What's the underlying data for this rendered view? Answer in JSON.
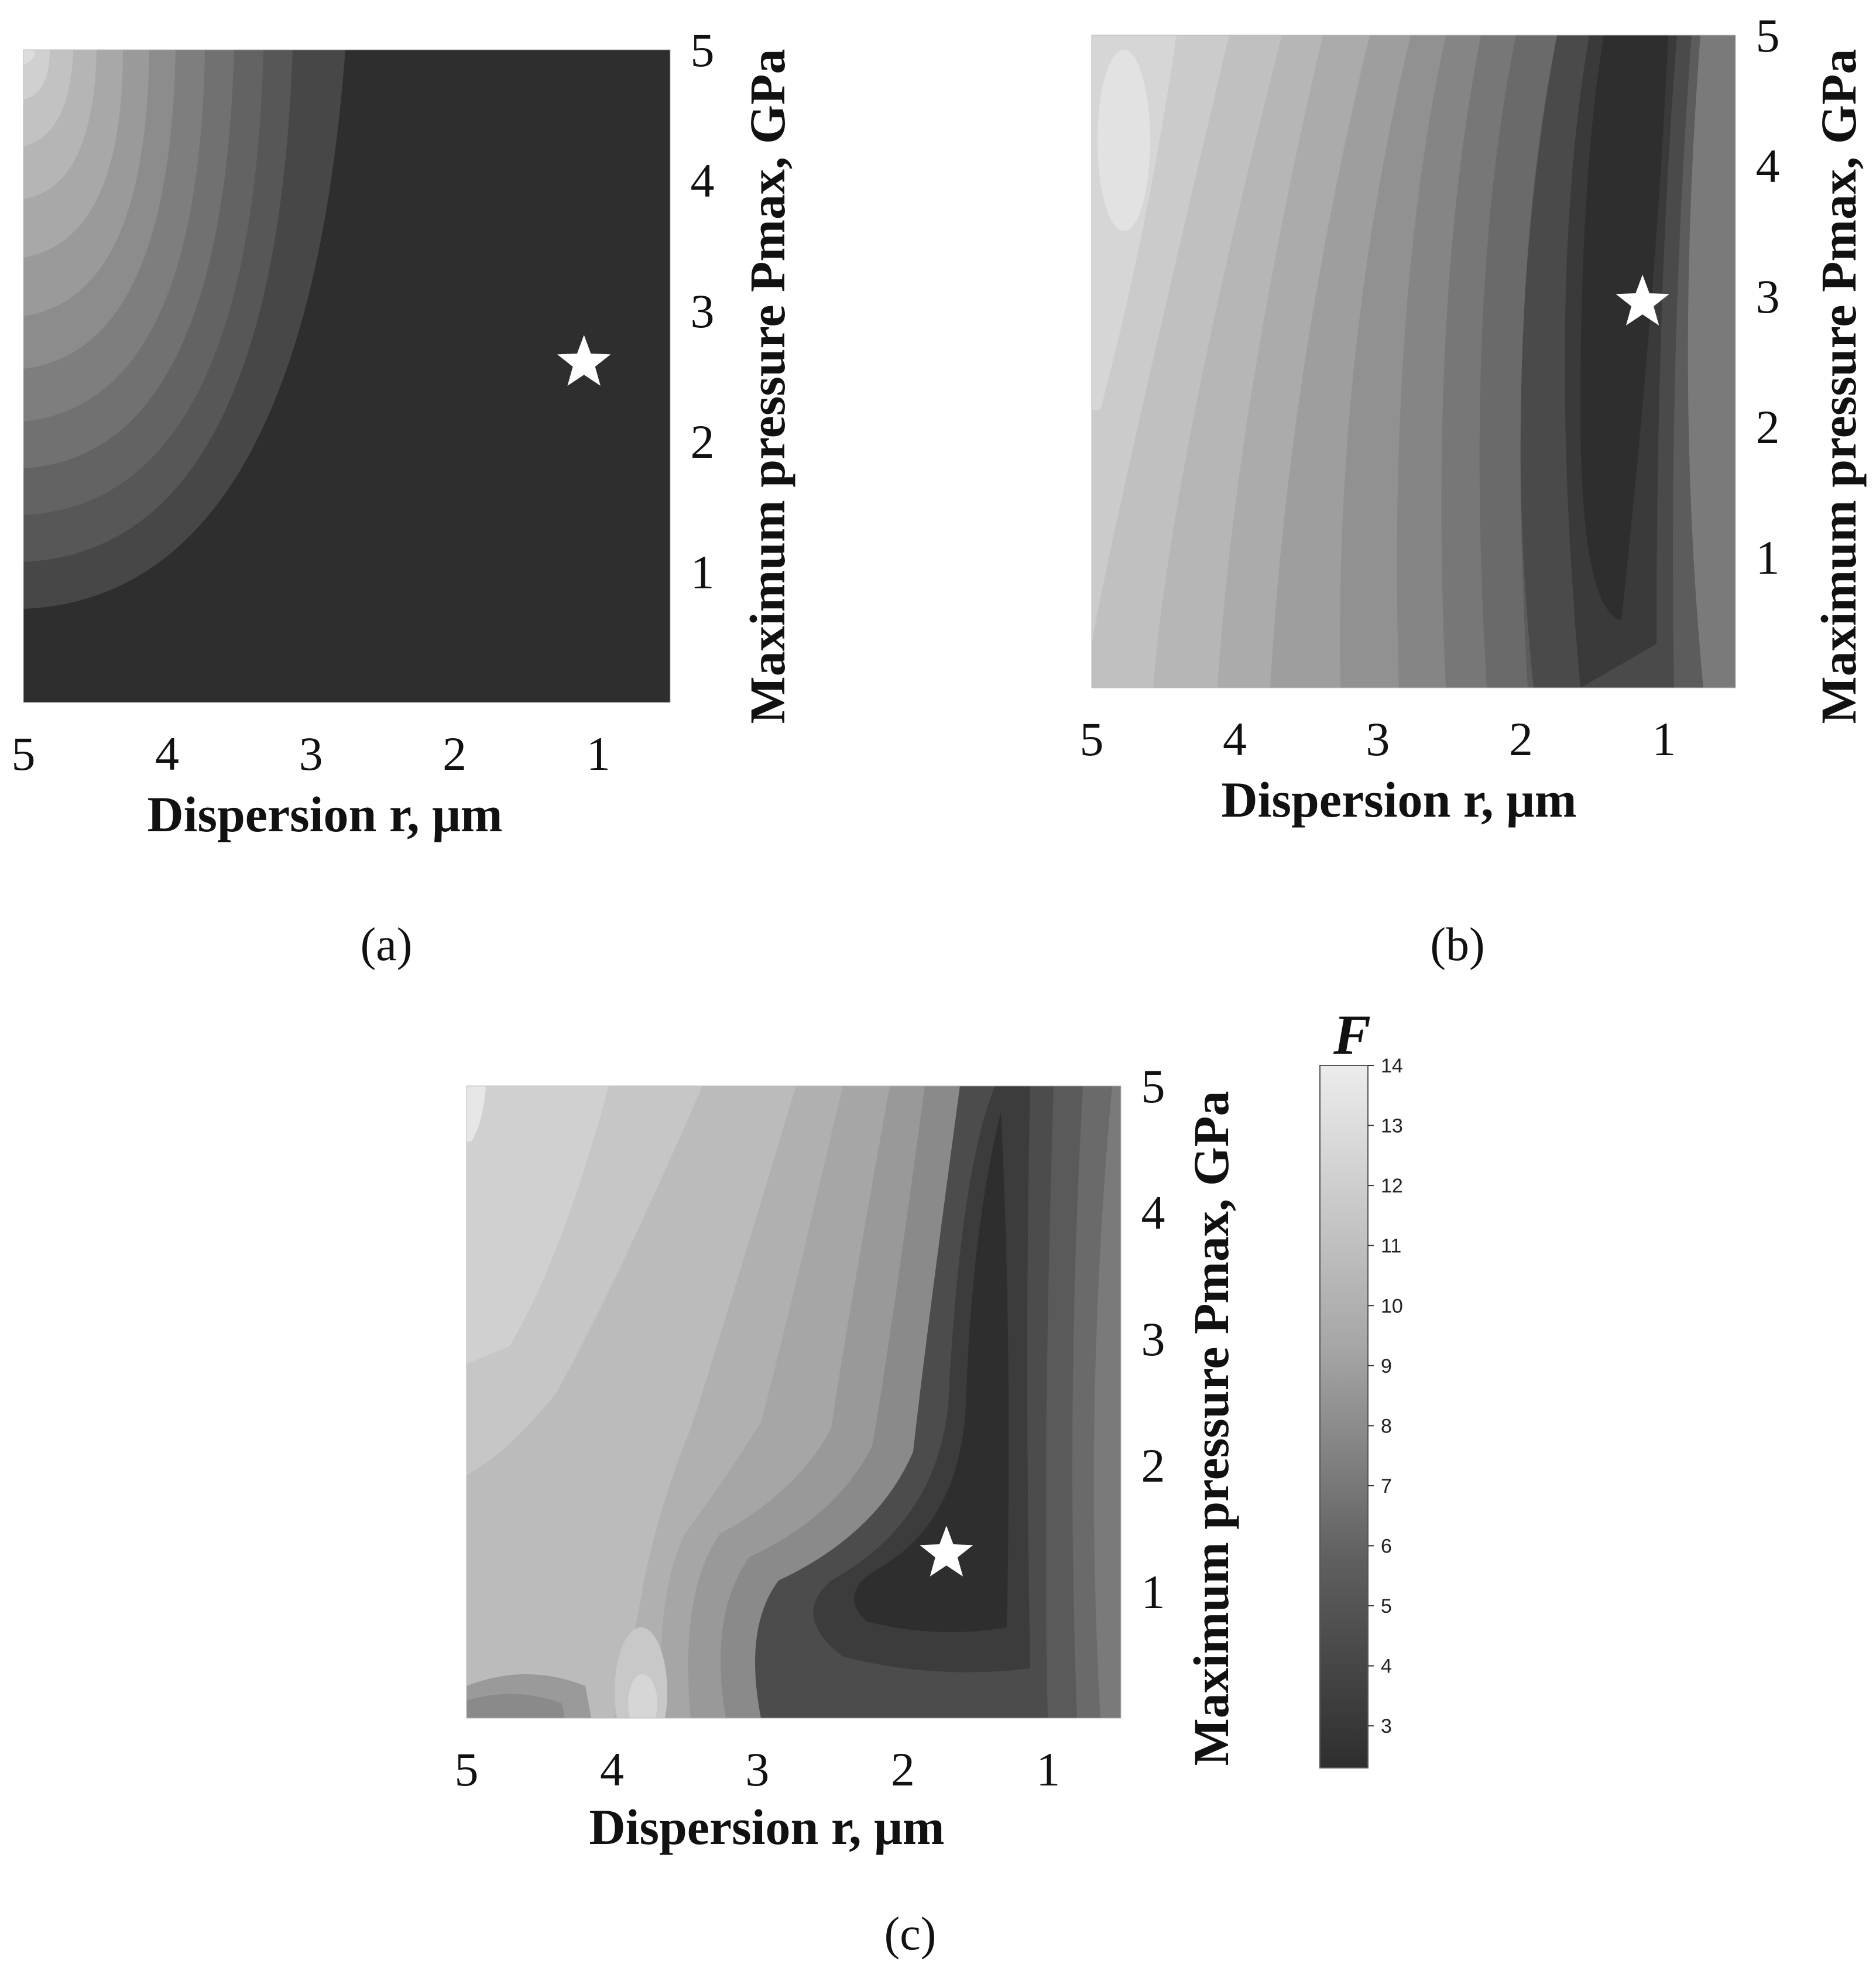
{
  "figure": {
    "captions": [
      "(a)",
      "(b)",
      "(c)"
    ]
  },
  "chart_data": [
    {
      "type": "heatmap",
      "panel": "(a)",
      "xlabel": "Dispersion r, μm",
      "ylabel": "Maximum pressure Pmax, GPa",
      "xticks": [
        5,
        4,
        3,
        2,
        1
      ],
      "yticks": [
        1,
        2,
        3,
        4,
        5
      ],
      "xlim": [
        5,
        0.5
      ],
      "ylim": [
        0,
        5
      ],
      "x_direction": "decreasing",
      "yaxis_side": "right",
      "colorscale": "grayscale",
      "optimum_marker": {
        "symbol": "star",
        "x": 1.1,
        "y": 2.6
      },
      "description_values": {
        "min_region": "r < 2.6 μm (F ≈ 2.5)",
        "max_region": "r = 5 μm, Pmax = 5 GPa (F ≈ 13.5)"
      }
    },
    {
      "type": "heatmap",
      "panel": "(b)",
      "xlabel": "Dispersion r, μm",
      "ylabel": "Maximum pressure Pmax, GPa",
      "xticks": [
        5,
        4,
        3,
        2,
        1
      ],
      "yticks": [
        1,
        2,
        3,
        4,
        5
      ],
      "xlim": [
        5,
        0.5
      ],
      "ylim": [
        0,
        5
      ],
      "x_direction": "decreasing",
      "yaxis_side": "right",
      "colorscale": "grayscale",
      "optimum_marker": {
        "symbol": "star",
        "x": 1.15,
        "y": 2.95
      }
    },
    {
      "type": "heatmap",
      "panel": "(c)",
      "xlabel": "Dispersion r, μm",
      "ylabel": "Maximum pressure Pmax, GPa",
      "xticks": [
        5,
        4,
        3,
        2,
        1
      ],
      "yticks": [
        1,
        2,
        3,
        4,
        5
      ],
      "xlim": [
        5,
        0.5
      ],
      "ylim": [
        0,
        5
      ],
      "x_direction": "decreasing",
      "yaxis_side": "right",
      "colorscale": "grayscale",
      "optimum_marker": {
        "symbol": "star",
        "x": 1.7,
        "y": 1.3
      }
    }
  ],
  "colorbar": {
    "title": "F",
    "min": 2.3,
    "max": 14,
    "ticks": [
      3,
      4,
      5,
      6,
      7,
      8,
      9,
      10,
      11,
      12,
      13,
      14
    ],
    "dark_color": "#2e2e2e",
    "light_color": "#ececec"
  }
}
